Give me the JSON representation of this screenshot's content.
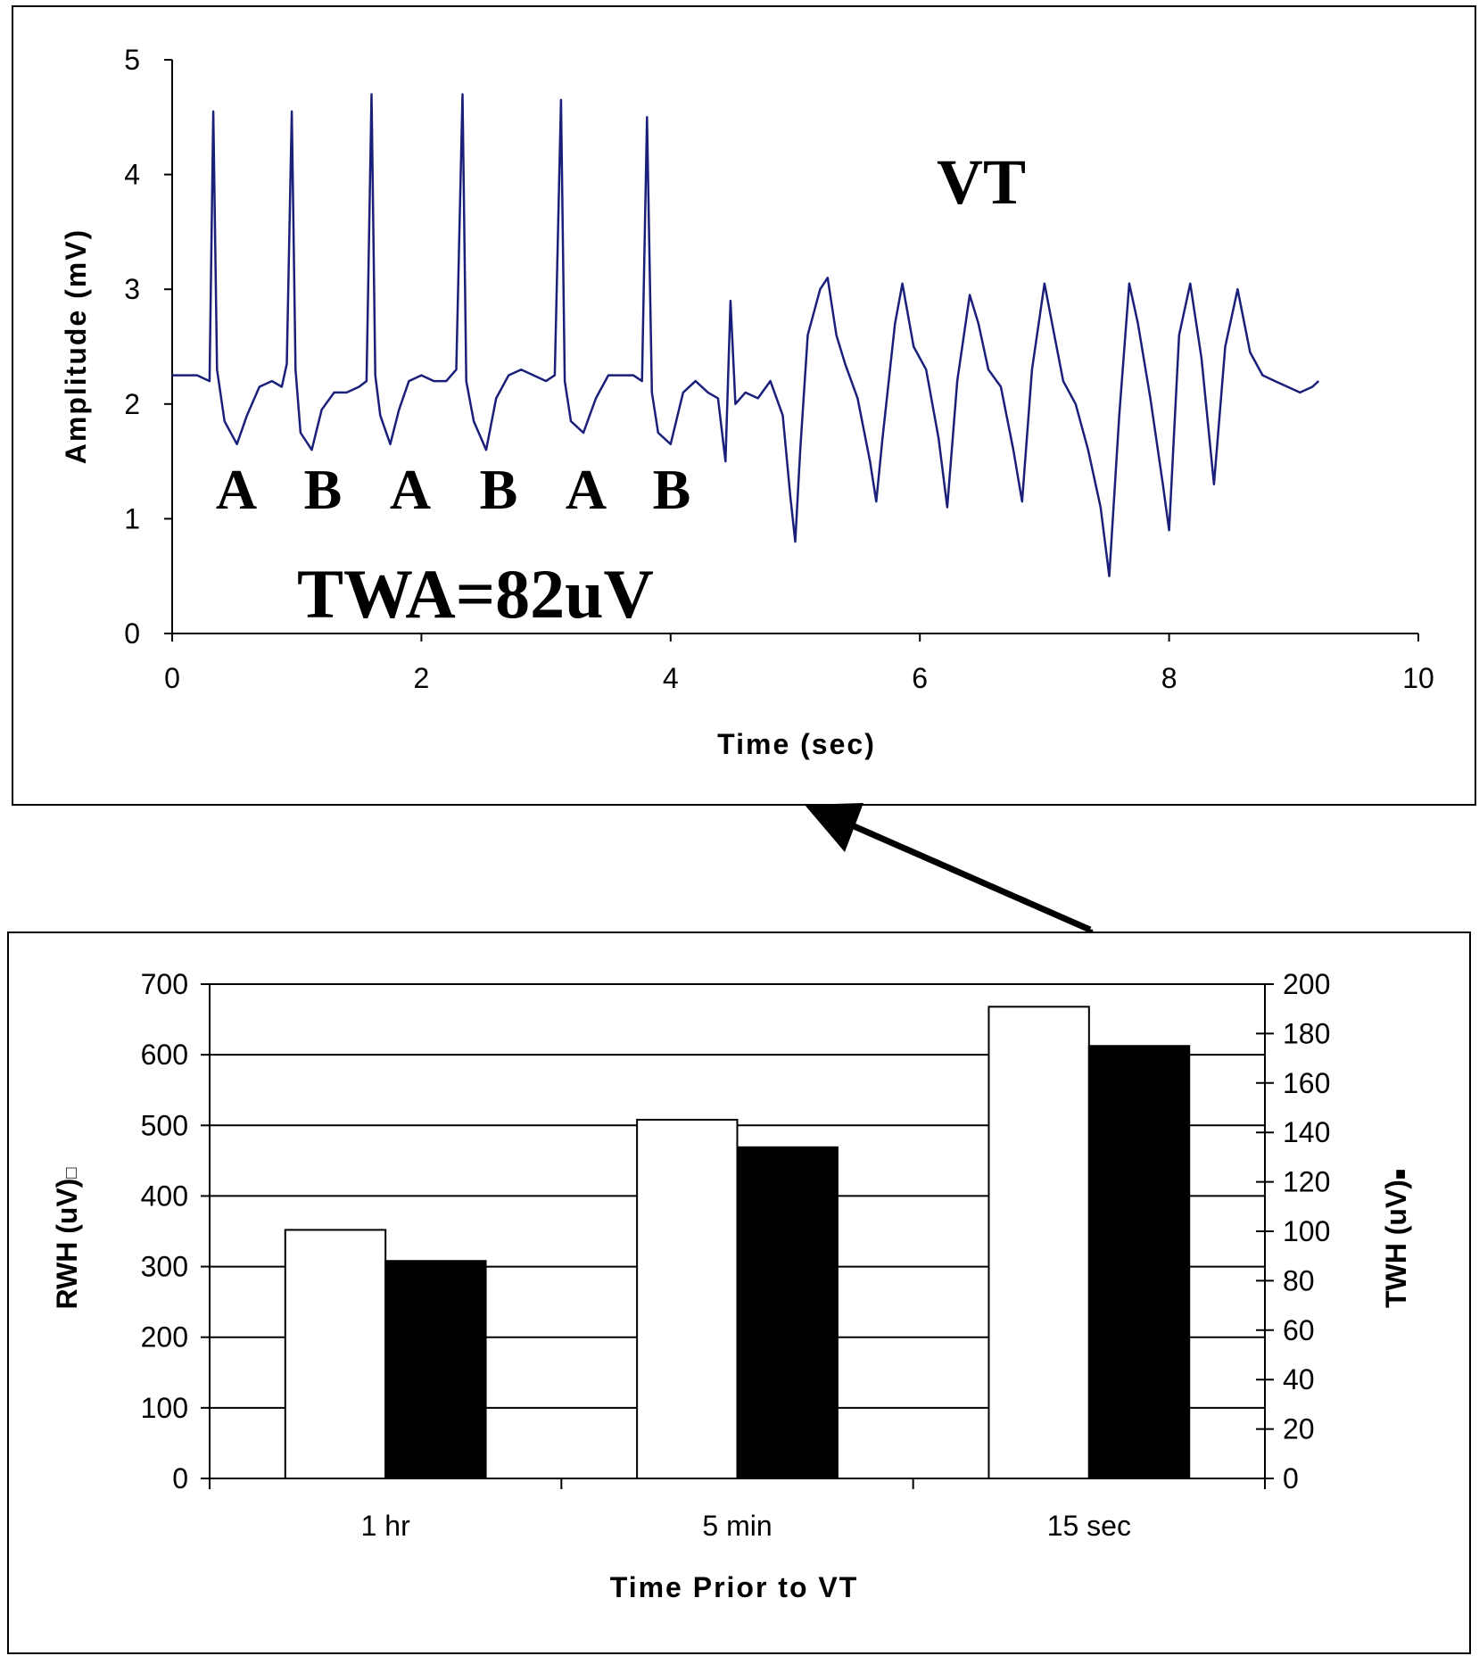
{
  "chart_data": [
    {
      "type": "line",
      "xlabel": "Time (sec)",
      "ylabel": "Amplitude (mV)",
      "xlim": [
        0,
        10
      ],
      "ylim": [
        0,
        5
      ],
      "x_ticks": [
        "0",
        "2",
        "4",
        "6",
        "8",
        "10"
      ],
      "y_ticks": [
        "0",
        "1",
        "2",
        "3",
        "4",
        "5"
      ],
      "grid": false,
      "line_color": "#1a1f7a",
      "series": [
        {
          "x": [
            0,
            0.2,
            0.3,
            0.33,
            0.36,
            0.42,
            0.52,
            0.6,
            0.7,
            0.8,
            0.88,
            0.92,
            0.96,
            0.99,
            1.03,
            1.12,
            1.2,
            1.3,
            1.4,
            1.5,
            1.56,
            1.6,
            1.63,
            1.67,
            1.75,
            1.82,
            1.9,
            2.0,
            2.1,
            2.2,
            2.28,
            2.33,
            2.36,
            2.42,
            2.52,
            2.6,
            2.7,
            2.8,
            2.9,
            3.0,
            3.07,
            3.12,
            3.15,
            3.2,
            3.3,
            3.4,
            3.5,
            3.6,
            3.7,
            3.77,
            3.81,
            3.85,
            3.9,
            4.0,
            4.1,
            4.2,
            4.3,
            4.38,
            4.44,
            4.48,
            4.52,
            4.6,
            4.7,
            4.8,
            4.9,
            4.96,
            5.0,
            5.04,
            5.1,
            5.2,
            5.26,
            5.33,
            5.4,
            5.5,
            5.6,
            5.65,
            5.7,
            5.8,
            5.86,
            5.95,
            6.05,
            6.15,
            6.22,
            6.3,
            6.4,
            6.47,
            6.55,
            6.65,
            6.75,
            6.82,
            6.9,
            7.0,
            7.07,
            7.15,
            7.25,
            7.35,
            7.45,
            7.52,
            7.6,
            7.68,
            7.75,
            7.85,
            7.95,
            8.0,
            8.08,
            8.17,
            8.26,
            8.36,
            8.45,
            8.55,
            8.65,
            8.75,
            8.85,
            8.95,
            9.05,
            9.15,
            9.2
          ],
          "y": [
            2.25,
            2.25,
            2.2,
            4.55,
            2.3,
            1.85,
            1.65,
            1.9,
            2.15,
            2.2,
            2.15,
            2.35,
            4.55,
            2.3,
            1.75,
            1.6,
            1.95,
            2.1,
            2.1,
            2.15,
            2.2,
            4.7,
            2.25,
            1.9,
            1.65,
            1.95,
            2.2,
            2.25,
            2.2,
            2.2,
            2.3,
            4.7,
            2.2,
            1.85,
            1.6,
            2.05,
            2.25,
            2.3,
            2.25,
            2.2,
            2.25,
            4.65,
            2.2,
            1.85,
            1.75,
            2.05,
            2.25,
            2.25,
            2.25,
            2.2,
            4.5,
            2.1,
            1.75,
            1.65,
            2.1,
            2.2,
            2.1,
            2.05,
            1.5,
            2.9,
            2.0,
            2.1,
            2.05,
            2.2,
            1.9,
            1.2,
            0.8,
            1.6,
            2.6,
            3.0,
            3.1,
            2.6,
            2.35,
            2.05,
            1.5,
            1.15,
            1.7,
            2.7,
            3.05,
            2.5,
            2.3,
            1.7,
            1.1,
            2.2,
            2.95,
            2.7,
            2.3,
            2.15,
            1.6,
            1.15,
            2.3,
            3.05,
            2.65,
            2.2,
            2.0,
            1.6,
            1.1,
            0.5,
            1.9,
            3.05,
            2.7,
            2.05,
            1.3,
            0.9,
            2.6,
            3.05,
            2.4,
            1.3,
            2.5,
            3.0,
            2.45,
            2.25,
            2.2,
            2.15,
            2.1,
            2.15,
            2.2
          ]
        }
      ]
    },
    {
      "type": "bar",
      "xlabel": "Time Prior to VT",
      "categories": [
        "1 hr",
        "5 min",
        "15 sec"
      ],
      "y_left": {
        "label": "RWH (uV)",
        "ylim": [
          0,
          700
        ],
        "ticks": [
          "0",
          "100",
          "200",
          "300",
          "400",
          "500",
          "600",
          "700"
        ]
      },
      "y_right": {
        "label": "TWH (uV)",
        "ylim": [
          0,
          200
        ],
        "ticks": [
          "0",
          "20",
          "40",
          "60",
          "80",
          "100",
          "120",
          "140",
          "160",
          "180",
          "200"
        ]
      },
      "grid": true,
      "series": [
        {
          "axis": "left",
          "color": "#ffffff",
          "values": [
            352,
            508,
            668
          ]
        },
        {
          "axis": "right",
          "color": "#000000",
          "values": [
            88,
            134,
            175
          ]
        }
      ]
    }
  ],
  "annotations": {
    "vt": "VT",
    "beat_labels": [
      "A",
      "B",
      "A",
      "B",
      "A",
      "B"
    ],
    "twa": "TWA=82uV",
    "rwh_legend_marker": "□",
    "twh_legend_marker": "■"
  }
}
